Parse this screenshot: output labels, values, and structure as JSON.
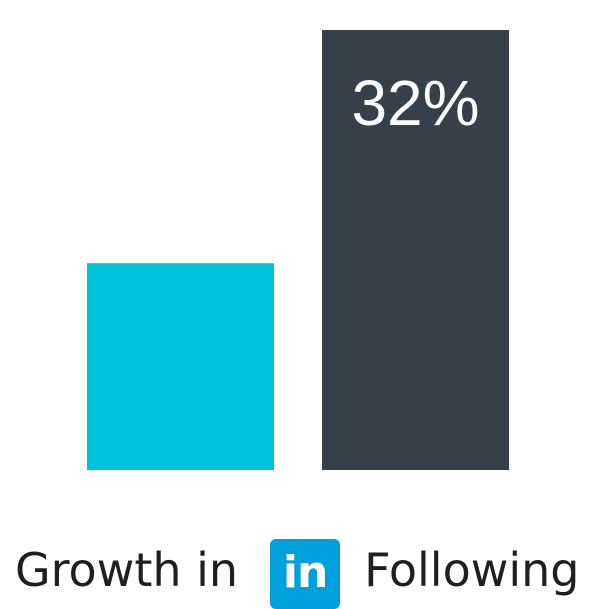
{
  "chart_data": {
    "type": "bar",
    "categories": [
      "",
      ""
    ],
    "values": [
      47,
      100
    ],
    "data_labels": [
      "",
      "32%"
    ],
    "colors": [
      "#00c2dd",
      "#36404a"
    ],
    "title": "",
    "xlabel": "",
    "ylabel": "",
    "ylim": [
      0,
      100
    ],
    "grid": false,
    "legend": "none"
  },
  "caption": {
    "prefix": "Growth in",
    "brand_mark": "in",
    "brand_color": "#00a0dc",
    "suffix": "Following"
  }
}
